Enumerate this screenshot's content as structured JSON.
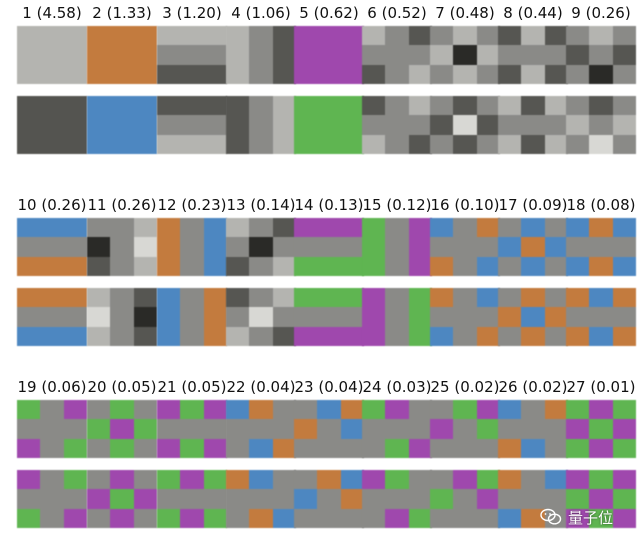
{
  "components": [
    {
      "label": "1 (4.58)",
      "top": [
        "c",
        "c",
        "c",
        "c",
        "c",
        "c",
        "c",
        "c",
        "c"
      ],
      "bottom": [
        "m",
        "m",
        "m",
        "m",
        "m",
        "m",
        "m",
        "m",
        "m"
      ]
    },
    {
      "label": "2 (1.33)",
      "top": [
        "O",
        "O",
        "O",
        "O",
        "O",
        "O",
        "O",
        "O",
        "O"
      ],
      "bottom": [
        "B",
        "B",
        "B",
        "B",
        "B",
        "B",
        "B",
        "B",
        "B"
      ]
    },
    {
      "label": "3 (1.20)",
      "top": [
        "c",
        "c",
        "c",
        "g",
        "g",
        "g",
        "d",
        "d",
        "d"
      ],
      "bottom": [
        "d",
        "d",
        "d",
        "g",
        "g",
        "g",
        "c",
        "c",
        "c"
      ]
    },
    {
      "label": "4 (1.06)",
      "top": [
        "c",
        "g",
        "d",
        "c",
        "g",
        "d",
        "c",
        "g",
        "d"
      ],
      "bottom": [
        "d",
        "g",
        "c",
        "d",
        "g",
        "c",
        "d",
        "g",
        "c"
      ]
    },
    {
      "label": "5 (0.62)",
      "top": [
        "P",
        "P",
        "P",
        "P",
        "P",
        "P",
        "P",
        "P",
        "P"
      ],
      "bottom": [
        "G",
        "G",
        "G",
        "G",
        "G",
        "G",
        "G",
        "G",
        "G"
      ]
    },
    {
      "label": "6 (0.52)",
      "top": [
        "c",
        "g",
        "d",
        "g",
        "g",
        "g",
        "d",
        "g",
        "c"
      ],
      "bottom": [
        "d",
        "g",
        "c",
        "g",
        "g",
        "g",
        "c",
        "g",
        "d"
      ]
    },
    {
      "label": "7 (0.48)",
      "top": [
        "g",
        "c",
        "g",
        "c",
        "k",
        "c",
        "g",
        "c",
        "g"
      ],
      "bottom": [
        "g",
        "d",
        "g",
        "d",
        "w",
        "d",
        "g",
        "d",
        "g"
      ]
    },
    {
      "label": "8 (0.44)",
      "top": [
        "d",
        "c",
        "d",
        "g",
        "g",
        "g",
        "d",
        "c",
        "d"
      ],
      "bottom": [
        "c",
        "d",
        "c",
        "g",
        "g",
        "g",
        "c",
        "d",
        "c"
      ]
    },
    {
      "label": "9 (0.26)",
      "top": [
        "g",
        "c",
        "g",
        "d",
        "g",
        "d",
        "g",
        "k",
        "g"
      ],
      "bottom": [
        "g",
        "d",
        "g",
        "c",
        "g",
        "c",
        "g",
        "w",
        "g"
      ]
    },
    {
      "label": "10 (0.26)",
      "top": [
        "B",
        "B",
        "B",
        "g",
        "g",
        "g",
        "O",
        "O",
        "O"
      ],
      "bottom": [
        "O",
        "O",
        "O",
        "g",
        "g",
        "g",
        "B",
        "B",
        "B"
      ]
    },
    {
      "label": "11 (0.26)",
      "top": [
        "g",
        "g",
        "c",
        "k",
        "g",
        "w",
        "d",
        "g",
        "c"
      ],
      "bottom": [
        "c",
        "g",
        "d",
        "w",
        "g",
        "k",
        "c",
        "g",
        "d"
      ]
    },
    {
      "label": "12 (0.23)",
      "top": [
        "O",
        "g",
        "B",
        "O",
        "g",
        "B",
        "O",
        "g",
        "B"
      ],
      "bottom": [
        "B",
        "g",
        "O",
        "B",
        "g",
        "O",
        "B",
        "g",
        "O"
      ]
    },
    {
      "label": "13 (0.14)",
      "top": [
        "c",
        "g",
        "d",
        "g",
        "k",
        "g",
        "d",
        "g",
        "c"
      ],
      "bottom": [
        "d",
        "g",
        "c",
        "g",
        "w",
        "g",
        "c",
        "g",
        "d"
      ]
    },
    {
      "label": "14 (0.13)",
      "top": [
        "P",
        "P",
        "P",
        "g",
        "g",
        "g",
        "G",
        "G",
        "G"
      ],
      "bottom": [
        "G",
        "G",
        "G",
        "g",
        "g",
        "g",
        "P",
        "P",
        "P"
      ]
    },
    {
      "label": "15 (0.12)",
      "top": [
        "G",
        "g",
        "P",
        "G",
        "g",
        "P",
        "G",
        "g",
        "P"
      ],
      "bottom": [
        "P",
        "g",
        "G",
        "P",
        "g",
        "G",
        "P",
        "g",
        "G"
      ]
    },
    {
      "label": "16 (0.10)",
      "top": [
        "B",
        "g",
        "O",
        "g",
        "g",
        "g",
        "O",
        "g",
        "B"
      ],
      "bottom": [
        "O",
        "g",
        "B",
        "g",
        "g",
        "g",
        "B",
        "g",
        "O"
      ]
    },
    {
      "label": "17 (0.09)",
      "top": [
        "g",
        "B",
        "g",
        "B",
        "O",
        "B",
        "g",
        "B",
        "g"
      ],
      "bottom": [
        "g",
        "O",
        "g",
        "O",
        "B",
        "O",
        "g",
        "O",
        "g"
      ]
    },
    {
      "label": "18 (0.08)",
      "top": [
        "B",
        "O",
        "B",
        "g",
        "g",
        "g",
        "B",
        "O",
        "B"
      ],
      "bottom": [
        "O",
        "B",
        "O",
        "g",
        "g",
        "g",
        "O",
        "B",
        "O"
      ]
    },
    {
      "label": "19 (0.06)",
      "top": [
        "G",
        "g",
        "P",
        "g",
        "g",
        "g",
        "P",
        "g",
        "G"
      ],
      "bottom": [
        "P",
        "g",
        "G",
        "g",
        "g",
        "g",
        "G",
        "g",
        "P"
      ]
    },
    {
      "label": "20 (0.05)",
      "top": [
        "g",
        "G",
        "g",
        "G",
        "P",
        "G",
        "g",
        "G",
        "g"
      ],
      "bottom": [
        "g",
        "P",
        "g",
        "P",
        "G",
        "P",
        "g",
        "P",
        "g"
      ]
    },
    {
      "label": "21 (0.05)",
      "top": [
        "P",
        "G",
        "P",
        "g",
        "g",
        "g",
        "P",
        "G",
        "P"
      ],
      "bottom": [
        "G",
        "P",
        "G",
        "g",
        "g",
        "g",
        "G",
        "P",
        "G"
      ]
    },
    {
      "label": "22 (0.04)",
      "top": [
        "B",
        "O",
        "g",
        "g",
        "g",
        "g",
        "g",
        "B",
        "O"
      ],
      "bottom": [
        "O",
        "B",
        "g",
        "g",
        "g",
        "g",
        "g",
        "O",
        "B"
      ]
    },
    {
      "label": "23 (0.04)",
      "top": [
        "g",
        "B",
        "O",
        "O",
        "g",
        "B",
        "g",
        "g",
        "g"
      ],
      "bottom": [
        "g",
        "O",
        "B",
        "B",
        "g",
        "O",
        "g",
        "g",
        "g"
      ]
    },
    {
      "label": "24 (0.03)",
      "top": [
        "G",
        "P",
        "g",
        "g",
        "g",
        "g",
        "g",
        "G",
        "P"
      ],
      "bottom": [
        "P",
        "G",
        "g",
        "g",
        "g",
        "g",
        "g",
        "P",
        "G"
      ]
    },
    {
      "label": "25 (0.02)",
      "top": [
        "g",
        "G",
        "P",
        "P",
        "g",
        "G",
        "g",
        "g",
        "g"
      ],
      "bottom": [
        "g",
        "P",
        "G",
        "G",
        "g",
        "P",
        "g",
        "g",
        "g"
      ]
    },
    {
      "label": "26 (0.02)",
      "top": [
        "B",
        "g",
        "O",
        "g",
        "g",
        "g",
        "O",
        "B",
        "g"
      ],
      "bottom": [
        "O",
        "g",
        "B",
        "g",
        "g",
        "g",
        "B",
        "O",
        "g"
      ]
    },
    {
      "label": "27 (0.01)",
      "top": [
        "G",
        "P",
        "G",
        "P",
        "G",
        "P",
        "G",
        "P",
        "G"
      ],
      "bottom": [
        "P",
        "G",
        "P",
        "G",
        "P",
        "G",
        "P",
        "G",
        "P"
      ]
    }
  ],
  "palette": {
    "c": "#b4b4b0",
    "g": "#8a8a87",
    "d": "#565652",
    "m": "#545450",
    "k": "#2a2a27",
    "w": "#d8d8d4",
    "O": "#c37b3e",
    "B": "#4d87c1",
    "P": "#9f48ad",
    "G": "#5fb551"
  },
  "watermark": {
    "icon": "wechat-icon",
    "text": "量子位"
  }
}
